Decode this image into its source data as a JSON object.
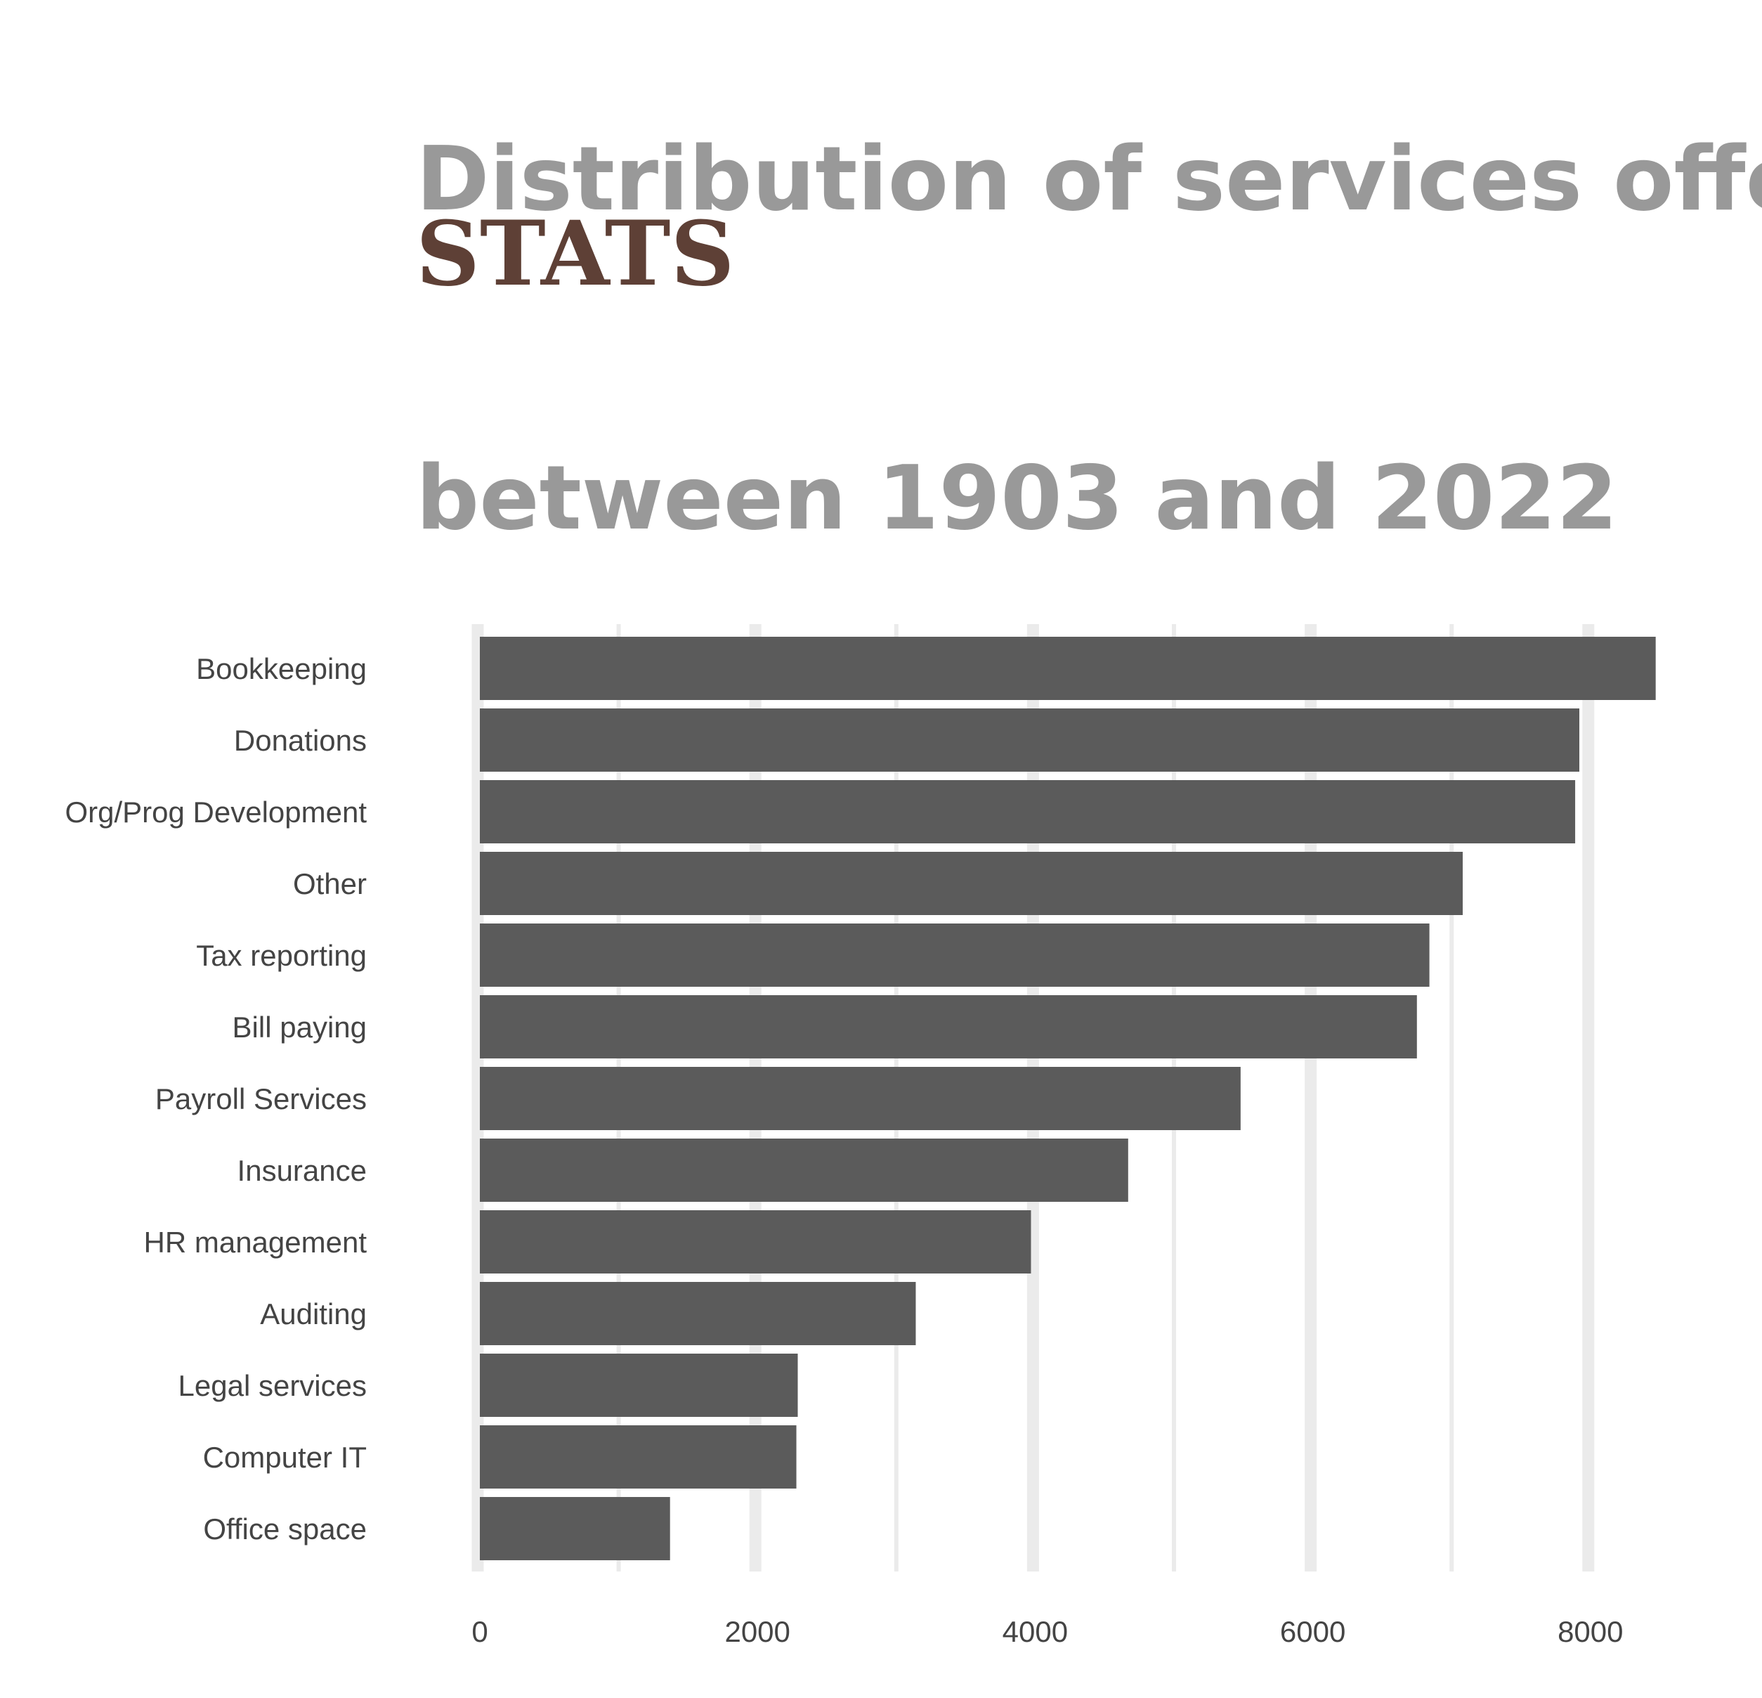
{
  "chart_data": {
    "type": "bar",
    "orientation": "horizontal",
    "title_line1": "Distribution of services offered",
    "title_emphasis": "STATS",
    "title_line2": "between 1903 and 2022",
    "xlabel": "",
    "ylabel": "",
    "categories": [
      "Bookkeeping",
      "Donations",
      "Org/Prog Development",
      "Other",
      "Tax reporting",
      "Bill paying",
      "Payroll Services",
      "Insurance",
      "HR management",
      "Auditing",
      "Legal services",
      "Computer IT",
      "Office space"
    ],
    "values": [
      8470,
      7920,
      7890,
      7080,
      6840,
      6750,
      5480,
      4670,
      3970,
      3140,
      2290,
      2280,
      1370
    ],
    "xlim": [
      0,
      8500
    ],
    "xticks": [
      0,
      2000,
      4000,
      6000,
      8000
    ],
    "minor_gridlines": [
      1000,
      3000,
      5000,
      7000
    ],
    "grid": true,
    "legend": "none",
    "bar_color": "#5b5b5b",
    "grid_color": "#ebebeb",
    "title_color": "#999999",
    "emphasis_color": "#5e4036"
  }
}
